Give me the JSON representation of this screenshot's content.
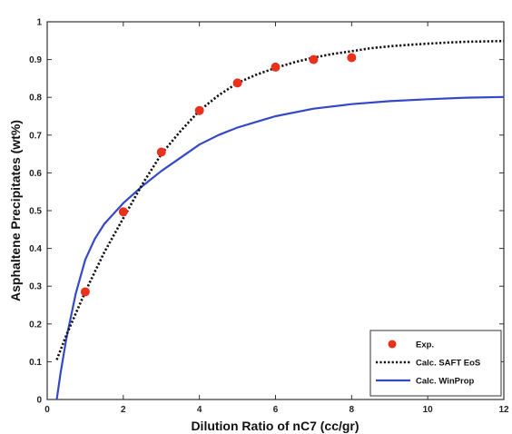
{
  "chart_data": {
    "type": "scatter",
    "xlabel": "Dilution Ratio of nC7 (cc/gr)",
    "ylabel": "Asphaltene Precipitates (wt%)",
    "xlim": [
      0,
      12
    ],
    "ylim": [
      0,
      1
    ],
    "xticks": [
      "0",
      "2",
      "4",
      "6",
      "8",
      "10",
      "12"
    ],
    "yticks": [
      "0",
      "0.1",
      "0.2",
      "0.3",
      "0.4",
      "0.5",
      "0.6",
      "0.7",
      "0.8",
      "0.9",
      "1"
    ],
    "grid": false,
    "legend_position": "bottom-right",
    "series": [
      {
        "name": "Exp.",
        "kind": "markers",
        "color": "#e8321e",
        "x": [
          1,
          2,
          3,
          4,
          5,
          6,
          7,
          8
        ],
        "y": [
          0.285,
          0.497,
          0.655,
          0.765,
          0.838,
          0.88,
          0.9,
          0.905
        ]
      },
      {
        "name": "Calc. SAFT EoS",
        "kind": "dotted-line",
        "color": "#111111",
        "x": [
          0.25,
          0.5,
          1,
          1.5,
          2,
          2.5,
          3,
          3.5,
          4,
          4.5,
          5,
          5.5,
          6,
          6.5,
          7,
          7.5,
          8,
          8.5,
          9,
          9.5,
          10,
          10.5,
          11,
          11.5,
          12
        ],
        "y": [
          0.105,
          0.17,
          0.285,
          0.39,
          0.48,
          0.57,
          0.65,
          0.71,
          0.765,
          0.805,
          0.838,
          0.86,
          0.878,
          0.893,
          0.905,
          0.915,
          0.922,
          0.93,
          0.935,
          0.939,
          0.942,
          0.945,
          0.947,
          0.948,
          0.949
        ]
      },
      {
        "name": "Calc. WinProp",
        "kind": "line",
        "color": "#3548c8",
        "x": [
          0.25,
          0.35,
          0.5,
          0.75,
          1,
          1.25,
          1.5,
          2,
          2.5,
          3,
          3.5,
          4,
          4.5,
          5,
          5.5,
          6,
          7,
          8,
          9,
          10,
          11,
          12
        ],
        "y": [
          0.0,
          0.07,
          0.16,
          0.28,
          0.37,
          0.425,
          0.465,
          0.52,
          0.565,
          0.605,
          0.64,
          0.675,
          0.7,
          0.72,
          0.735,
          0.75,
          0.77,
          0.782,
          0.79,
          0.795,
          0.799,
          0.801
        ]
      }
    ]
  }
}
